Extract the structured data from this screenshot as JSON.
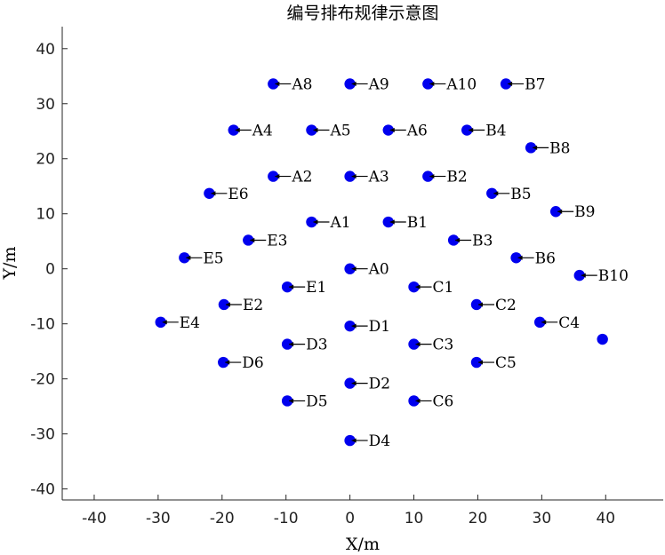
{
  "chart_data": {
    "type": "scatter",
    "title": "编号排布规律示意图",
    "xlabel": "X/m",
    "ylabel": "Y/m",
    "xlim": [
      -45,
      49
    ],
    "ylim": [
      -42,
      44
    ],
    "xticks": [
      -40,
      -30,
      -20,
      -10,
      0,
      10,
      20,
      30,
      40
    ],
    "yticks": [
      -40,
      -30,
      -20,
      -10,
      0,
      10,
      20,
      30,
      40
    ],
    "grid": false,
    "marker_color": "#0000ee",
    "points": [
      {
        "label": "A0",
        "x": 0,
        "y": 0
      },
      {
        "label": "A1",
        "x": -6,
        "y": 8.5
      },
      {
        "label": "A2",
        "x": -12,
        "y": 16.8
      },
      {
        "label": "A3",
        "x": 0,
        "y": 16.8
      },
      {
        "label": "A4",
        "x": -18.2,
        "y": 25.2
      },
      {
        "label": "A5",
        "x": -6,
        "y": 25.2
      },
      {
        "label": "A6",
        "x": 6,
        "y": 25.2
      },
      {
        "label": "A8",
        "x": -12,
        "y": 33.6
      },
      {
        "label": "A9",
        "x": 0,
        "y": 33.6
      },
      {
        "label": "A10",
        "x": 12.2,
        "y": 33.6
      },
      {
        "label": "B1",
        "x": 6,
        "y": 8.5
      },
      {
        "label": "B2",
        "x": 12.2,
        "y": 16.8
      },
      {
        "label": "B3",
        "x": 16.2,
        "y": 5.2
      },
      {
        "label": "B4",
        "x": 18.3,
        "y": 25.2
      },
      {
        "label": "B5",
        "x": 22.2,
        "y": 13.7
      },
      {
        "label": "B6",
        "x": 26,
        "y": 2
      },
      {
        "label": "B7",
        "x": 24.4,
        "y": 33.6
      },
      {
        "label": "B8",
        "x": 28.3,
        "y": 22
      },
      {
        "label": "B9",
        "x": 32.2,
        "y": 10.4
      },
      {
        "label": "B10",
        "x": 35.9,
        "y": -1.2
      },
      {
        "label": "C1",
        "x": 10,
        "y": -3.3
      },
      {
        "label": "C2",
        "x": 19.8,
        "y": -6.5
      },
      {
        "label": "C3",
        "x": 10,
        "y": -13.7
      },
      {
        "label": "C4",
        "x": 29.7,
        "y": -9.7
      },
      {
        "label": "C5",
        "x": 19.8,
        "y": -17
      },
      {
        "label": "C6",
        "x": 10,
        "y": -24
      },
      {
        "label": "",
        "x": 39.5,
        "y": -12.8
      },
      {
        "label": "D1",
        "x": 0,
        "y": -10.4
      },
      {
        "label": "D2",
        "x": 0,
        "y": -20.8
      },
      {
        "label": "D3",
        "x": -9.8,
        "y": -13.7
      },
      {
        "label": "D4",
        "x": 0,
        "y": -31.2
      },
      {
        "label": "D5",
        "x": -9.8,
        "y": -24
      },
      {
        "label": "D6",
        "x": -19.8,
        "y": -17
      },
      {
        "label": "E1",
        "x": -9.8,
        "y": -3.3
      },
      {
        "label": "E2",
        "x": -19.7,
        "y": -6.5
      },
      {
        "label": "E3",
        "x": -15.9,
        "y": 5.2
      },
      {
        "label": "E4",
        "x": -29.6,
        "y": -9.7
      },
      {
        "label": "E5",
        "x": -25.9,
        "y": 2
      },
      {
        "label": "E6",
        "x": -22,
        "y": 13.7
      }
    ]
  }
}
